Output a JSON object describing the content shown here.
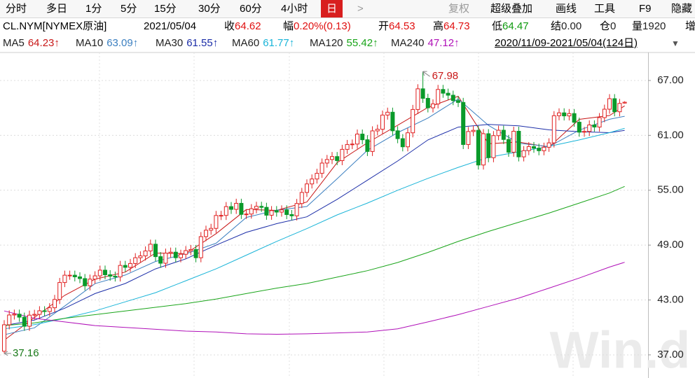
{
  "toolbar": {
    "periods": [
      "分时",
      "多日",
      "1分",
      "5分",
      "15分",
      "30分",
      "60分",
      "4小时",
      "日"
    ],
    "active_index": 8,
    "tools": [
      "复权",
      "超级叠加",
      "画线",
      "工具",
      "F9",
      "隐藏"
    ]
  },
  "quote": {
    "symbol": "CL.NYM[NYMEX原油]",
    "date": "2021/05/04",
    "fields": [
      {
        "label": "收",
        "value": "64.62",
        "color": "#e01010"
      },
      {
        "label": "幅",
        "value": "0.20%(0.13)",
        "color": "#e01010"
      },
      {
        "label": "开",
        "value": "64.53",
        "color": "#e01010"
      },
      {
        "label": "高",
        "value": "64.73",
        "color": "#e01010"
      },
      {
        "label": "低",
        "value": "64.47",
        "color": "#109a10"
      },
      {
        "label": "结",
        "value": "0.00",
        "color": "#222222"
      },
      {
        "label": "仓",
        "value": "0",
        "color": "#222222"
      },
      {
        "label": "量",
        "value": "1920",
        "color": "#222222"
      },
      {
        "label": "增"
      }
    ]
  },
  "watermark": "Win.d",
  "chart_data": {
    "type": "candlestick",
    "date_range": "2020/11/09-2021/05/04(124日)",
    "up_color": "#e02020",
    "down_color": "#0a9a2a",
    "opens": [
      37.4,
      40.29,
      41.36,
      41.45,
      41.12,
      40.13,
      41.34,
      41.43,
      41.82,
      41.74,
      42.15,
      43.06,
      44.91,
      45.71,
      45.71,
      45.53,
      45.34,
      44.55,
      45.28,
      45.64,
      46.26,
      45.76,
      45.6,
      45.52,
      46.78,
      46.57,
      46.99,
      47.62,
      47.82,
      48.36,
      49.1,
      47.74,
      47.02,
      48.12,
      48.23,
      47.62,
      48.0,
      48.4,
      48.52,
      47.62,
      49.93,
      50.63,
      50.83,
      52.24,
      52.25,
      53.21,
      52.91,
      53.57,
      52.36,
      52.4,
      52.98,
      53.24,
      53.13,
      52.27,
      52.77,
      52.61,
      52.85,
      52.34,
      52.2,
      53.55,
      54.76,
      55.69,
      56.23,
      56.85,
      57.97,
      58.36,
      58.68,
      58.24,
      59.47,
      60.0,
      60.05,
      61.14,
      60.52,
      59.24,
      61.49,
      61.67,
      63.22,
      63.53,
      61.5,
      60.64,
      59.75,
      61.28,
      63.83,
      66.09,
      65.05,
      64.01,
      64.44,
      66.02,
      65.61,
      65.39,
      64.8,
      64.6,
      60.0,
      61.42,
      61.55,
      57.76,
      61.18,
      58.56,
      60.97,
      61.56,
      60.55,
      59.16,
      61.45,
      58.65,
      59.33,
      59.77,
      59.6,
      59.32,
      59.7,
      60.18,
      63.15,
      63.46,
      63.13,
      63.38,
      62.44,
      61.35,
      61.43,
      62.14,
      61.91,
      62.94,
      63.86,
      65.01,
      63.58,
      64.53
    ],
    "highs": [
      40.79,
      41.86,
      41.95,
      41.95,
      41.62,
      41.84,
      41.93,
      42.32,
      42.32,
      42.65,
      43.56,
      45.41,
      46.21,
      46.21,
      46.21,
      46.03,
      45.84,
      45.78,
      46.14,
      46.76,
      46.76,
      46.26,
      46.1,
      47.28,
      47.28,
      47.49,
      48.12,
      48.32,
      48.86,
      49.6,
      49.6,
      48.24,
      48.62,
      48.73,
      48.73,
      48.5,
      48.9,
      49.02,
      49.02,
      50.43,
      51.13,
      51.33,
      52.74,
      52.75,
      53.71,
      53.71,
      54.07,
      54.07,
      52.9,
      53.48,
      53.74,
      53.74,
      53.63,
      53.27,
      53.27,
      53.35,
      53.35,
      52.84,
      54.05,
      55.26,
      56.19,
      56.73,
      57.35,
      58.47,
      58.86,
      59.18,
      59.18,
      59.97,
      60.5,
      60.55,
      61.64,
      61.64,
      61.02,
      61.99,
      62.17,
      63.72,
      64.03,
      64.03,
      62.0,
      61.14,
      61.78,
      64.33,
      66.59,
      67.98,
      65.55,
      64.94,
      66.52,
      66.52,
      66.11,
      65.89,
      65.3,
      65.1,
      61.92,
      62.05,
      62.05,
      61.68,
      61.68,
      61.47,
      62.06,
      62.06,
      61.05,
      61.95,
      61.95,
      59.83,
      60.27,
      60.27,
      60.1,
      60.2,
      60.68,
      63.65,
      63.96,
      63.96,
      63.88,
      63.88,
      62.94,
      61.93,
      62.64,
      62.64,
      63.44,
      64.36,
      65.51,
      65.51,
      64.99,
      64.73
    ],
    "lows": [
      37.16,
      39.79,
      40.86,
      40.62,
      39.63,
      39.63,
      40.84,
      40.93,
      41.24,
      41.24,
      41.65,
      42.56,
      44.41,
      45.21,
      45.03,
      44.84,
      44.05,
      44.05,
      44.78,
      45.14,
      45.26,
      45.1,
      45.02,
      45.02,
      46.07,
      46.07,
      46.49,
      47.12,
      47.32,
      47.86,
      47.24,
      46.52,
      46.52,
      47.62,
      47.12,
      47.12,
      47.5,
      47.9,
      47.12,
      47.12,
      49.43,
      50.13,
      50.33,
      51.74,
      51.75,
      52.41,
      52.41,
      51.86,
      51.86,
      51.9,
      52.48,
      52.63,
      51.77,
      51.77,
      52.11,
      52.11,
      51.84,
      51.7,
      51.7,
      53.05,
      54.26,
      55.19,
      55.73,
      56.35,
      57.47,
      57.86,
      57.74,
      57.74,
      58.97,
      59.5,
      59.55,
      60.02,
      58.74,
      58.74,
      60.99,
      61.17,
      62.72,
      61.0,
      60.14,
      59.25,
      59.25,
      60.78,
      63.33,
      64.55,
      63.51,
      63.51,
      63.94,
      65.11,
      64.89,
      64.3,
      64.1,
      59.5,
      59.5,
      60.92,
      57.26,
      57.26,
      58.06,
      58.06,
      60.47,
      60.05,
      58.66,
      58.66,
      58.15,
      58.15,
      58.83,
      59.1,
      58.82,
      58.82,
      59.2,
      59.68,
      62.65,
      62.63,
      62.63,
      61.94,
      60.85,
      60.85,
      60.93,
      61.41,
      61.41,
      62.44,
      63.36,
      63.08,
      63.08,
      64.47
    ],
    "closes": [
      40.29,
      41.36,
      41.45,
      41.12,
      40.13,
      41.34,
      41.43,
      41.82,
      41.74,
      42.15,
      43.06,
      44.91,
      45.71,
      45.71,
      45.53,
      45.34,
      44.55,
      45.28,
      45.64,
      46.26,
      45.76,
      45.6,
      45.52,
      46.78,
      46.57,
      46.99,
      47.62,
      47.82,
      48.36,
      49.1,
      47.74,
      47.02,
      48.12,
      48.23,
      47.62,
      48.0,
      48.4,
      48.52,
      47.62,
      49.93,
      50.63,
      50.83,
      52.24,
      52.25,
      53.21,
      52.91,
      53.57,
      52.36,
      52.4,
      52.98,
      53.24,
      53.13,
      52.27,
      52.77,
      52.61,
      52.85,
      52.34,
      52.2,
      53.55,
      54.76,
      55.69,
      56.23,
      56.85,
      57.97,
      58.36,
      58.68,
      58.24,
      59.47,
      60.0,
      60.05,
      61.14,
      60.52,
      59.24,
      61.49,
      61.67,
      63.22,
      63.53,
      61.5,
      60.64,
      59.75,
      61.28,
      63.83,
      66.09,
      65.05,
      64.01,
      64.44,
      66.02,
      65.61,
      65.39,
      64.8,
      64.6,
      60.0,
      61.42,
      61.55,
      57.76,
      61.18,
      58.56,
      60.97,
      61.56,
      60.55,
      59.16,
      61.45,
      58.65,
      59.33,
      59.77,
      59.6,
      59.32,
      59.7,
      60.18,
      63.15,
      63.46,
      63.13,
      63.38,
      62.44,
      61.35,
      61.43,
      62.14,
      61.91,
      62.94,
      63.86,
      65.01,
      63.58,
      64.49,
      64.62
    ],
    "ma_index": [
      0,
      6,
      12,
      18,
      24,
      30,
      36,
      42,
      48,
      54,
      60,
      66,
      72,
      78,
      84,
      90,
      96,
      102,
      108,
      114,
      120,
      123
    ],
    "ma_series": [
      {
        "name": "MA5",
        "label": "64.23↑",
        "color": "#c81818",
        "values": [
          38.6,
          41.09,
          43.51,
          45.27,
          46.05,
          48.13,
          48.07,
          50.25,
          52.89,
          52.8,
          53.71,
          58.02,
          60.19,
          62.11,
          64.05,
          65.28,
          60.09,
          60.27,
          59.71,
          62.75,
          63.17,
          64.23
        ]
      },
      {
        "name": "MA10",
        "label": "63.09↑",
        "color": "#3b7fc0",
        "values": [
          39.2,
          39.96,
          42.34,
          44.79,
          45.73,
          47.21,
          48.04,
          49.2,
          52.03,
          52.82,
          53.22,
          56.25,
          59.37,
          61.3,
          62.89,
          64.98,
          62.09,
          60.14,
          59.77,
          61.57,
          62.76,
          63.09
        ]
      },
      {
        "name": "MA30",
        "label": "61.55↑",
        "color": "#1c2ea8",
        "values": [
          40.2,
          40.8,
          42.1,
          43.7,
          44.8,
          46.4,
          47.5,
          49.0,
          50.4,
          51.35,
          52.1,
          54.0,
          56.1,
          58.2,
          60.5,
          61.9,
          62.2,
          62.05,
          61.6,
          61.4,
          61.3,
          61.55
        ]
      },
      {
        "name": "MA60",
        "label": "61.77↑",
        "color": "#19b4d8",
        "values": [
          39.85,
          40.3,
          41.0,
          41.8,
          42.8,
          43.8,
          45.1,
          46.4,
          47.9,
          49.4,
          50.8,
          52.3,
          53.6,
          55.0,
          56.3,
          57.5,
          58.6,
          59.2,
          59.8,
          60.5,
          61.3,
          61.77
        ]
      },
      {
        "name": "MA120",
        "label": "55.42↑",
        "color": "#1aa51a",
        "values": [
          40.2,
          40.5,
          41.0,
          41.4,
          41.8,
          42.2,
          42.6,
          43.1,
          43.7,
          44.3,
          44.8,
          45.5,
          46.2,
          47.1,
          48.2,
          49.4,
          50.5,
          51.5,
          52.5,
          53.6,
          54.7,
          55.42
        ]
      },
      {
        "name": "MA240",
        "label": "47.12↑",
        "color": "#b010b8",
        "values": [
          41.8,
          41.0,
          40.6,
          40.2,
          40.0,
          39.8,
          39.6,
          39.5,
          39.3,
          39.25,
          39.3,
          39.4,
          39.5,
          39.85,
          40.6,
          41.4,
          42.3,
          43.2,
          44.3,
          45.4,
          46.6,
          47.12
        ]
      }
    ],
    "annotations": {
      "highest": 67.98,
      "lowest": 37.16
    },
    "ylim": [
      34.47,
      70.06
    ],
    "yticks": [
      {
        "value": 67,
        "label": "67.00"
      },
      {
        "value": 61,
        "label": "61.00"
      },
      {
        "value": 55,
        "label": "55.00"
      },
      {
        "value": 49,
        "label": "49.00"
      },
      {
        "value": 43,
        "label": "43.00"
      },
      {
        "value": 37,
        "label": "37.00"
      }
    ],
    "grid": true
  }
}
